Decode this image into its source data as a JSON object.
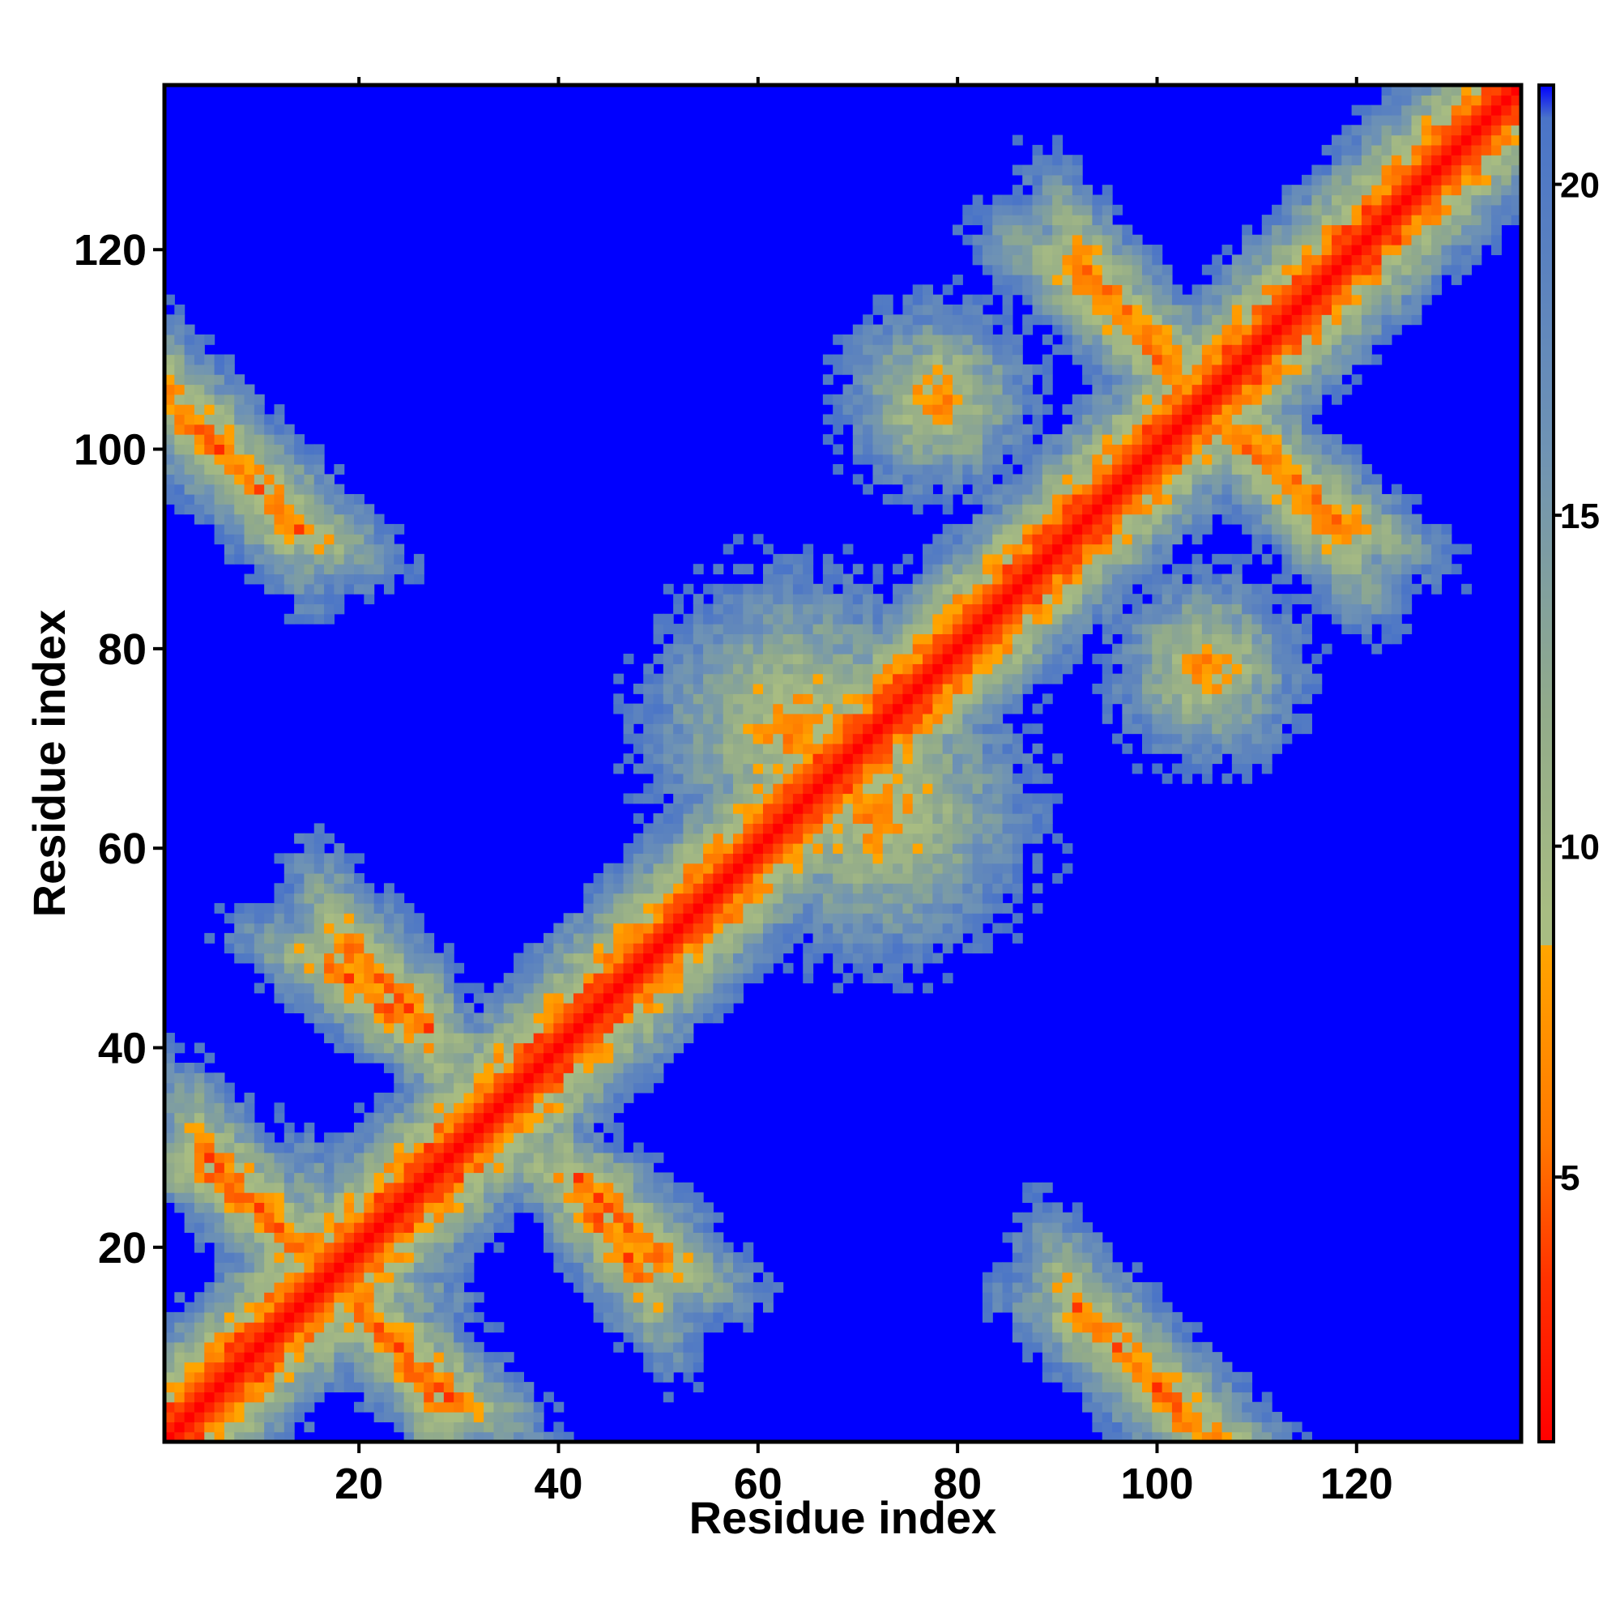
{
  "chart_data": {
    "type": "heatmap",
    "title": "",
    "xlabel": "Residue index",
    "ylabel": "Residue index",
    "n_residues": 136,
    "xlim": [
      1,
      136
    ],
    "ylim": [
      1,
      136
    ],
    "x_ticks": [
      20,
      40,
      60,
      80,
      100,
      120
    ],
    "y_ticks": [
      20,
      40,
      60,
      80,
      100,
      120
    ],
    "colorbar": {
      "range": [
        1,
        21.5
      ],
      "ticks": [
        5,
        10,
        15,
        20
      ],
      "stops": [
        {
          "value": 1,
          "color": "#ff0000"
        },
        {
          "value": 3.5,
          "color": "#ff3300"
        },
        {
          "value": 5.5,
          "color": "#ff7700"
        },
        {
          "value": 8.5,
          "color": "#ffa500"
        },
        {
          "value": 9,
          "color": "#a8bc82"
        },
        {
          "value": 12,
          "color": "#92ab8a"
        },
        {
          "value": 16,
          "color": "#6f93b4"
        },
        {
          "value": 21,
          "color": "#4a74c8"
        },
        {
          "value": 21.5,
          "color": "#0000ff"
        }
      ]
    },
    "background_color": "#0000ff",
    "features": [
      {
        "kind": "diagonal",
        "note": "main diagonal (self distance)"
      },
      {
        "kind": "antiparallel_band",
        "i_range": [
          2,
          12
        ],
        "j_range": [
          94,
          104
        ]
      },
      {
        "kind": "antiparallel_band",
        "i_range": [
          5,
          18
        ],
        "j_range": [
          16,
          29
        ]
      },
      {
        "kind": "antiparallel_band",
        "i_range": [
          18,
          27
        ],
        "j_range": [
          5,
          19
        ]
      },
      {
        "kind": "antiparallel_band",
        "i_range": [
          19,
          27
        ],
        "j_range": [
          42,
          50
        ]
      },
      {
        "kind": "antiparallel_band",
        "i_range": [
          42,
          48
        ],
        "j_range": [
          18,
          25
        ]
      },
      {
        "kind": "antiparallel_band",
        "i_range": [
          92,
          104
        ],
        "j_range": [
          2,
          14
        ]
      },
      {
        "kind": "antiparallel_band",
        "i_range": [
          93,
          103
        ],
        "j_range": [
          106,
          118
        ]
      },
      {
        "kind": "antiparallel_band",
        "i_range": [
          106,
          118
        ],
        "j_range": [
          92,
          104
        ]
      },
      {
        "kind": "blob",
        "center": [
          64,
          72
        ],
        "size": 16
      },
      {
        "kind": "blob",
        "center": [
          72,
          64
        ],
        "size": 16
      },
      {
        "kind": "blob",
        "center": [
          105,
          78
        ],
        "size": 10
      },
      {
        "kind": "blob",
        "center": [
          78,
          105
        ],
        "size": 10
      }
    ]
  }
}
